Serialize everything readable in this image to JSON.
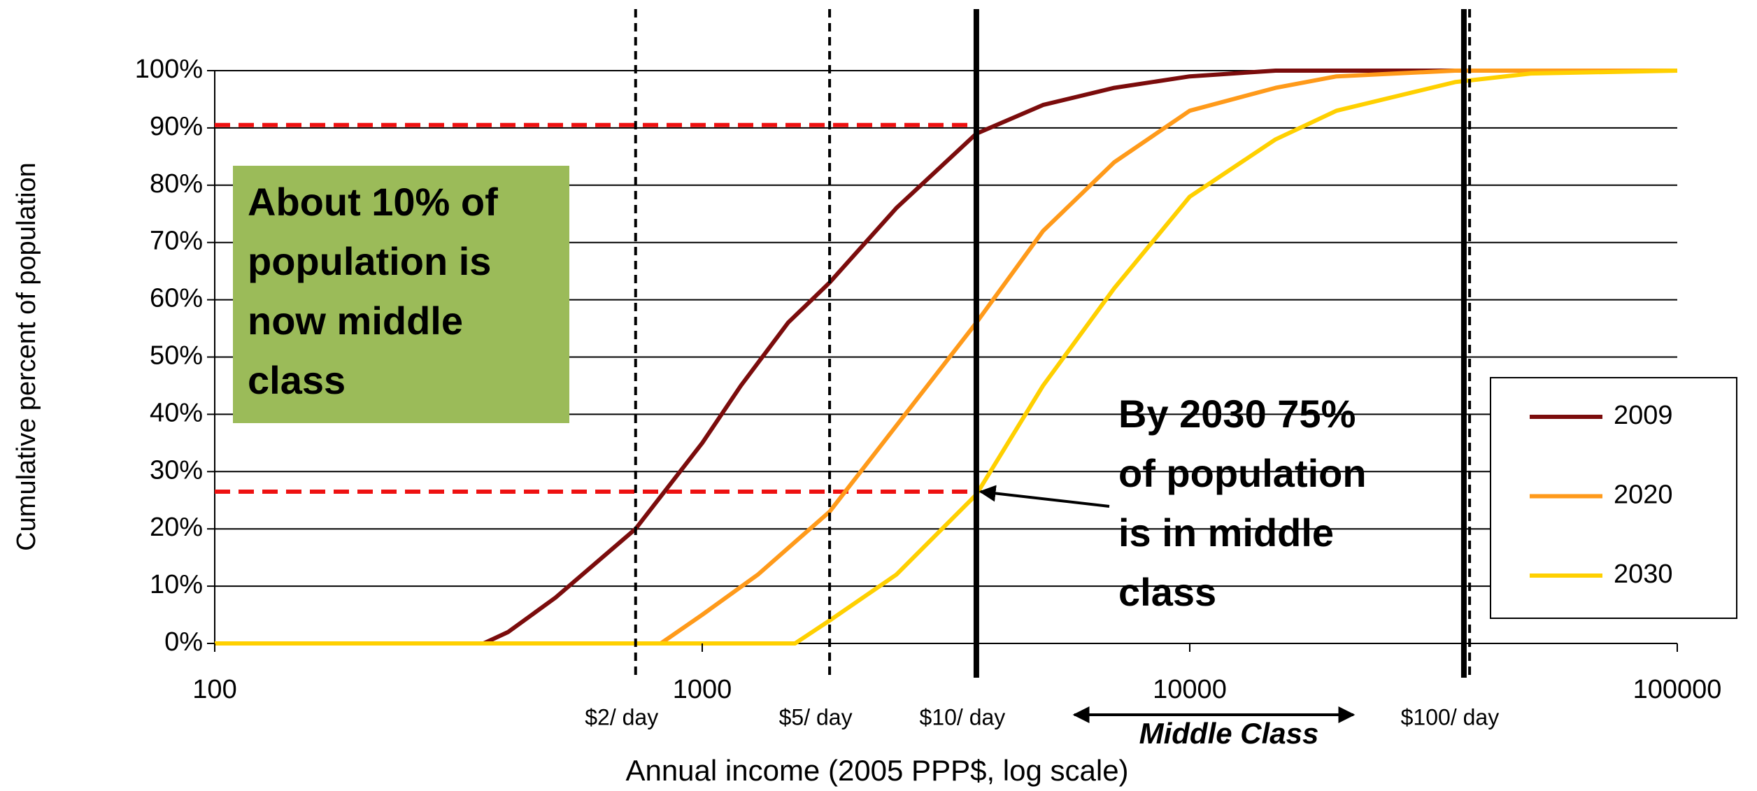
{
  "chart_data": {
    "type": "line",
    "x_label": "Annual income (2005 PPP$, log scale)",
    "y_label": "Cumulative percent of population",
    "xlim": [
      100,
      100000
    ],
    "xticks": [
      100,
      1000,
      10000,
      100000
    ],
    "x_log": true,
    "ylim": [
      0,
      100
    ],
    "yticks": [
      {
        "value": 0,
        "label": "0%"
      },
      {
        "value": 10,
        "label": "10%"
      },
      {
        "value": 20,
        "label": "20%"
      },
      {
        "value": 30,
        "label": "30%"
      },
      {
        "value": 40,
        "label": "40%"
      },
      {
        "value": 50,
        "label": "50%"
      },
      {
        "value": 60,
        "label": "60%"
      },
      {
        "value": 70,
        "label": "70%"
      },
      {
        "value": 80,
        "label": "80%"
      },
      {
        "value": 90,
        "label": "90%"
      },
      {
        "value": 100,
        "label": "100%"
      }
    ],
    "grid": true,
    "legend": "right",
    "series": [
      {
        "name": "2009",
        "color": "#7b0c0c",
        "x": [
          100,
          356,
          400,
          500,
          730,
          1000,
          1200,
          1500,
          1825,
          2500,
          3650,
          5000,
          7000,
          10000,
          15000,
          100000
        ],
        "values": [
          0,
          0,
          2,
          8,
          20,
          35,
          45,
          56,
          63,
          76,
          89,
          94,
          97,
          99,
          100,
          100
        ]
      },
      {
        "name": "2020",
        "color": "#ff9a1a",
        "x": [
          100,
          822,
          1000,
          1300,
          1825,
          2500,
          3650,
          5000,
          7000,
          10000,
          15000,
          20000,
          35000,
          100000
        ],
        "values": [
          0,
          0,
          5,
          12,
          23,
          38,
          56,
          72,
          84,
          93,
          97,
          99,
          100,
          100
        ]
      },
      {
        "name": "2030",
        "color": "#ffd000",
        "x": [
          100,
          1550,
          1825,
          2500,
          3650,
          5000,
          7000,
          10000,
          15000,
          20000,
          35000,
          50000,
          100000
        ],
        "values": [
          0,
          0,
          4,
          12,
          26,
          45,
          62,
          78,
          88,
          93,
          98,
          99.5,
          100
        ]
      }
    ],
    "reference_lines": [
      {
        "x": 730,
        "label": "$2/ day",
        "style": "dashed"
      },
      {
        "x": 1825,
        "label": "$5/ day",
        "style": "dashed"
      },
      {
        "x": 3650,
        "label": "$10/ day",
        "style": "solid"
      },
      {
        "x": 36500,
        "label": "$100/ day",
        "style": "solid"
      },
      {
        "x": 37500,
        "style": "dashed"
      }
    ],
    "threshold_lines": [
      {
        "y": 90.5,
        "x_end": 3650,
        "color": "#ee1111"
      },
      {
        "y": 26.5,
        "x_end": 3650,
        "color": "#ee1111"
      }
    ],
    "annotations": [
      {
        "lines": [
          "About 10% of",
          "population is",
          "now middle",
          "class"
        ]
      },
      {
        "lines": [
          "By 2030 75%",
          "of population",
          "is in middle",
          "class"
        ],
        "arrow_to": [
          3650,
          26.5
        ]
      }
    ],
    "range_label": "Middle Class"
  }
}
